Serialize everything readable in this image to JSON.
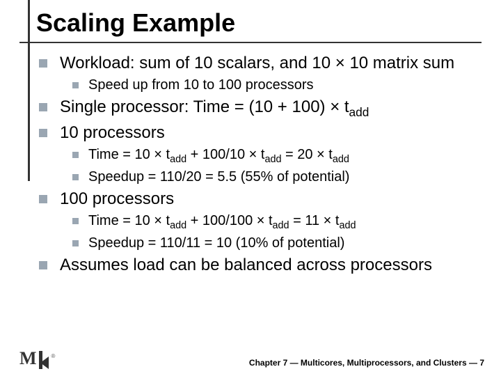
{
  "title": "Scaling Example",
  "bullets": {
    "b1_1": "Workload: sum of 10 scalars, and 10 × 10 matrix sum",
    "b1_1_1": "Speed up from 10 to 100 processors",
    "b1_2_pre": "Single processor: Time = (10 + 100) × t",
    "b1_2_sub": "add",
    "b1_3": "10 processors",
    "b1_3_1_a": "Time = 10 × t",
    "b1_3_1_b": " + 100/10 × t",
    "b1_3_1_c": " = 20 × t",
    "b1_3_2": "Speedup = 110/20 = 5.5 (55% of potential)",
    "b1_4": "100 processors",
    "b1_4_1_a": "Time = 10 × t",
    "b1_4_1_b": " + 100/100 × t",
    "b1_4_1_c": " = 11 × t",
    "b1_4_2": "Speedup = 110/11 = 10 (10% of potential)",
    "b1_5": "Assumes load can be balanced across processors",
    "sub_add": "add"
  },
  "footer": "Chapter 7 — Multicores, Multiprocessors, and Clusters — 7",
  "logo_text": "M",
  "logo_reg": "®",
  "colors": {
    "bullet_square": "#9aa6b2",
    "rule": "#333333",
    "text": "#000000",
    "background": "#ffffff"
  },
  "typography": {
    "title_fontsize": 36,
    "level1_fontsize": 24,
    "level2_fontsize": 20,
    "footer_fontsize": 12,
    "font_family": "Arial"
  }
}
